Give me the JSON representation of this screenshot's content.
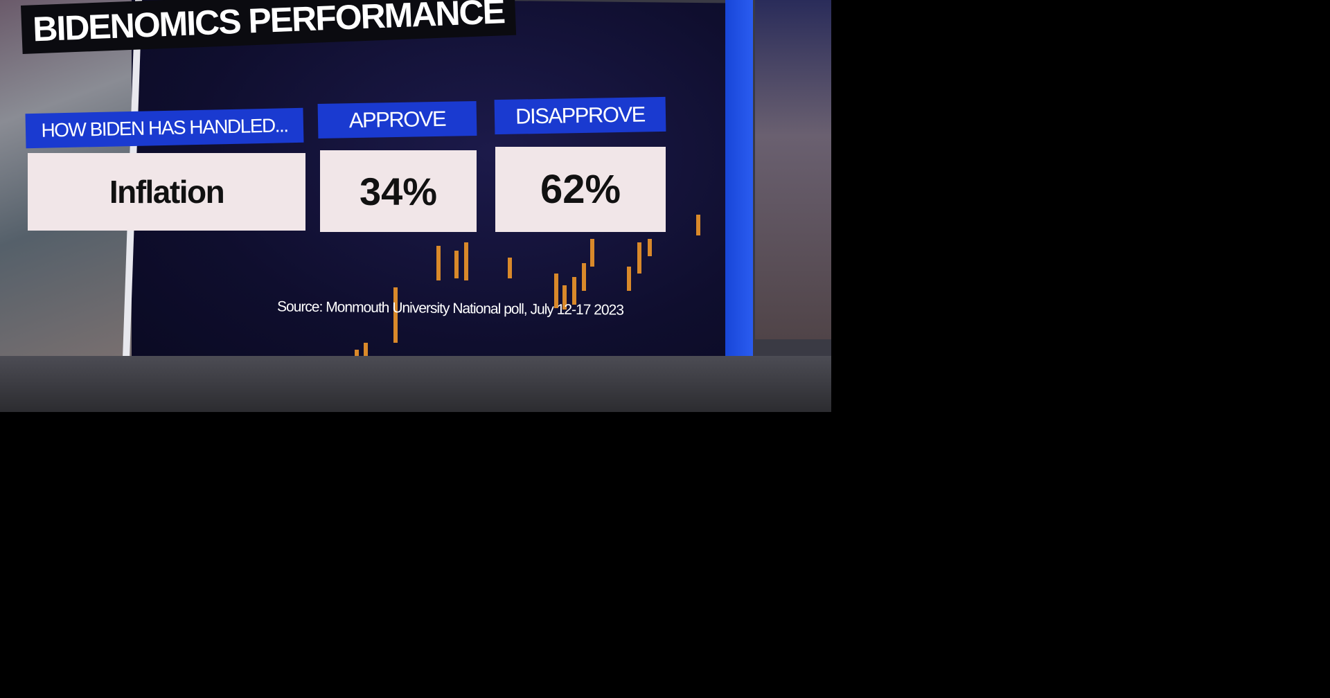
{
  "title": "BIDENOMICS PERFORMANCE",
  "table": {
    "headers": [
      "HOW BIDEN HAS HANDLED...",
      "APPROVE",
      "DISAPPROVE"
    ],
    "rows": [
      {
        "topic": "Inflation",
        "approve": "34%",
        "disapprove": "62%"
      }
    ]
  },
  "source": "Source: Monmouth University National poll, July 12-17 2023",
  "colors": {
    "header_blue": "#1a3ad0",
    "cell_bg": "#f1e6e8",
    "candle_orange": "#d9892a"
  }
}
